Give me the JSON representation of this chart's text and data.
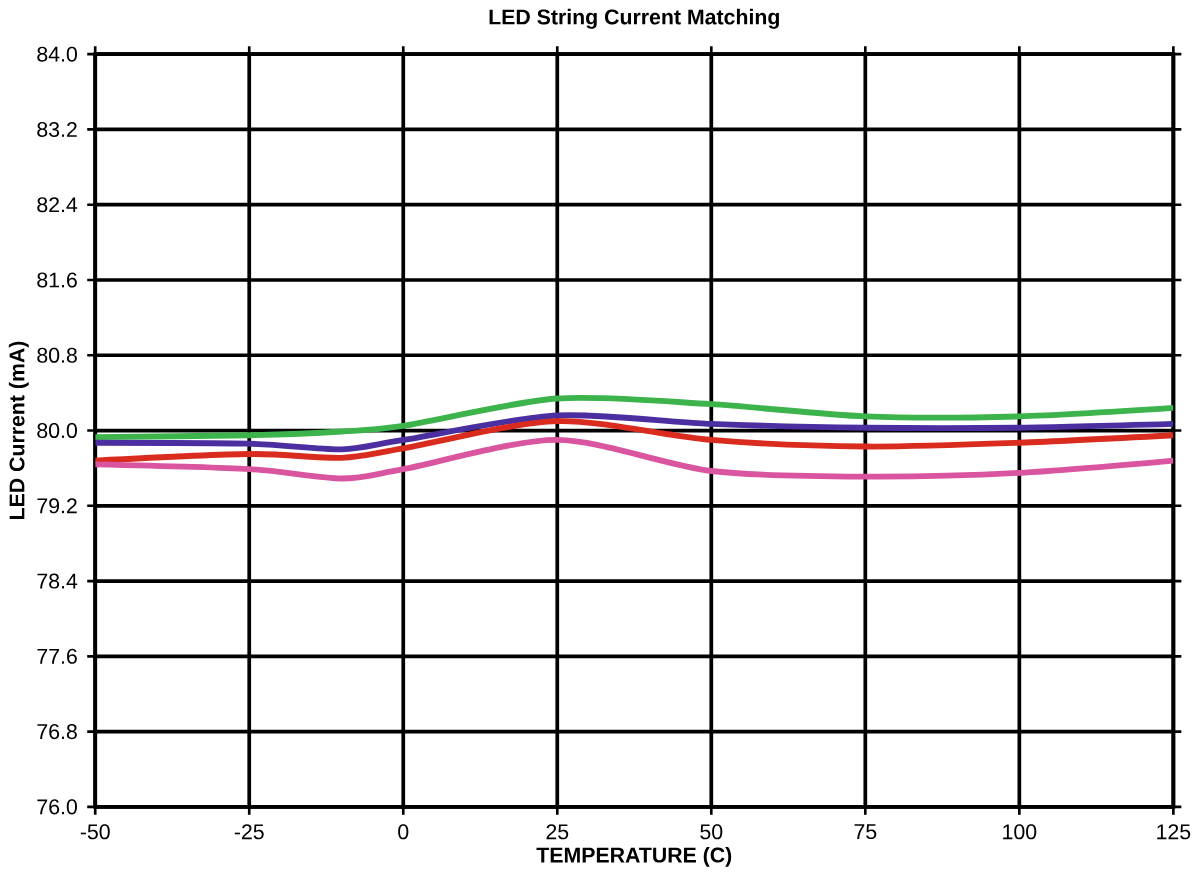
{
  "chart_data": {
    "type": "line",
    "title": "LED String Current Matching",
    "xlabel": "TEMPERATURE (C)",
    "ylabel": "LED Current (mA)",
    "x": [
      -50,
      -25,
      -10,
      0,
      25,
      50,
      75,
      100,
      125
    ],
    "series": [
      {
        "color": "#3cb44b",
        "values": [
          79.93,
          79.95,
          79.99,
          80.05,
          80.34,
          80.28,
          80.15,
          80.15,
          80.24
        ]
      },
      {
        "color": "#4b2fa0",
        "values": [
          79.87,
          79.86,
          79.8,
          79.9,
          80.16,
          80.07,
          80.03,
          80.03,
          80.07
        ]
      },
      {
        "color": "#d92b1e",
        "values": [
          79.68,
          79.75,
          79.71,
          79.81,
          80.1,
          79.9,
          79.83,
          79.87,
          79.95
        ]
      },
      {
        "color": "#d9559f",
        "values": [
          79.64,
          79.59,
          79.49,
          79.59,
          79.9,
          79.57,
          79.51,
          79.55,
          79.68
        ]
      }
    ],
    "xlim": [
      -50,
      125
    ],
    "xticks": [
      -50,
      -25,
      0,
      25,
      50,
      75,
      100,
      125
    ],
    "ylim": [
      76,
      84
    ],
    "yticks": [
      {
        "value": 76,
        "label": "76.0"
      },
      {
        "value": 76.8,
        "label": "76.8"
      },
      {
        "value": 77.6,
        "label": "77.6"
      },
      {
        "value": 78.4,
        "label": "78.4"
      },
      {
        "value": 79.2,
        "label": "79.2"
      },
      {
        "value": 80,
        "label": "80.0"
      },
      {
        "value": 80.8,
        "label": "80.8"
      },
      {
        "value": 81.6,
        "label": "81.6"
      },
      {
        "value": 82.4,
        "label": "82.4"
      },
      {
        "value": 83.2,
        "label": "83.2"
      },
      {
        "value": 84,
        "label": "84.0"
      }
    ],
    "grid": true,
    "marker": "none",
    "line_style": "solid"
  }
}
